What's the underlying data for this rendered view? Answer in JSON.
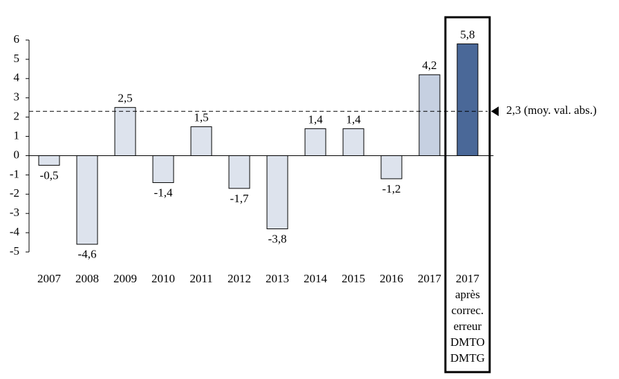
{
  "chart_data": {
    "type": "bar",
    "categories": [
      "2007",
      "2008",
      "2009",
      "2010",
      "2011",
      "2012",
      "2013",
      "2014",
      "2015",
      "2016",
      "2017",
      "2017 après correc. erreur DMTO DMTG"
    ],
    "values": [
      -0.5,
      -4.6,
      2.5,
      -1.4,
      1.5,
      -1.7,
      -3.8,
      1.4,
      1.4,
      -1.2,
      4.2,
      5.8
    ],
    "value_labels": [
      "-0,5",
      "-4,6",
      "2,5",
      "-1,4",
      "1,5",
      "-1,7",
      "-3,8",
      "1,4",
      "1,4",
      "-1,2",
      "4,2",
      "5,8"
    ],
    "colors": [
      "#dde3ed",
      "#dde3ed",
      "#dde3ed",
      "#dde3ed",
      "#dde3ed",
      "#dde3ed",
      "#dde3ed",
      "#dde3ed",
      "#dde3ed",
      "#dde3ed",
      "#c6d0e1",
      "#4a6898"
    ],
    "ylim": [
      -5,
      6
    ],
    "yticks": [
      -5,
      -4,
      -3,
      -2,
      -1,
      0,
      1,
      2,
      3,
      4,
      5,
      6
    ],
    "reference_line": {
      "value": 2.3,
      "label": "2,3 (moy. val. abs.)"
    },
    "grid": false
  }
}
